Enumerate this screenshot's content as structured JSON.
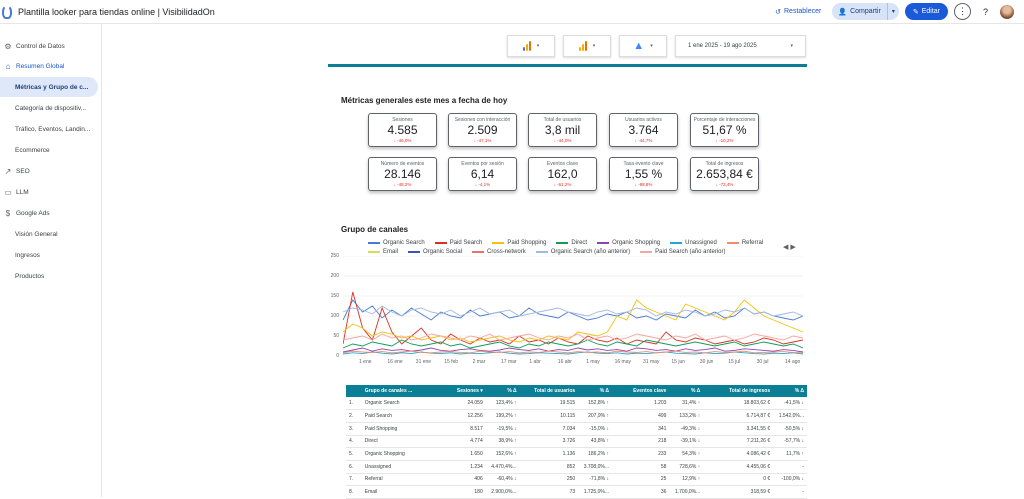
{
  "app": {
    "title": "Plantilla looker para tiendas online | VisibilidadOn",
    "reset_label": "Restablecer",
    "share_label": "Compartir",
    "edit_label": "Editar"
  },
  "sidebar": {
    "items": [
      {
        "label": "Control de Datos",
        "icon": "gear-icon",
        "glyph": "⚙"
      },
      {
        "label": "Resumen Global",
        "icon": "home-icon",
        "glyph": "⌂"
      },
      {
        "label": "Métricas y Grupo de c..."
      },
      {
        "label": "Categoría de dispositiv..."
      },
      {
        "label": "Tráfico, Eventos, Landin..."
      },
      {
        "label": "Ecommerce"
      },
      {
        "label": "SEO",
        "icon": "trending-up-icon",
        "glyph": "↗"
      },
      {
        "label": "LLM",
        "icon": "chat-icon",
        "glyph": "▭"
      },
      {
        "label": "Google Ads",
        "icon": "dollar-icon",
        "glyph": "$"
      },
      {
        "label": "Visión General"
      },
      {
        "label": "Ingresos"
      },
      {
        "label": "Productos"
      }
    ]
  },
  "filters": {
    "date_range": "1 ene 2025 - 19 ago 2025"
  },
  "metrics": {
    "title": "Métricas generales este mes a fecha de hoy",
    "cards": [
      {
        "label": "Sesiones",
        "value": "4.585",
        "delta": "↓ -46,0%"
      },
      {
        "label": "Sesiones con interacción",
        "value": "2.509",
        "delta": "↓ -47,1%"
      },
      {
        "label": "Total de usuarios",
        "value": "3,8 mil",
        "delta": "↓ -44,0%"
      },
      {
        "label": "Usuarios activos",
        "value": "3.764",
        "delta": "↓ -44,7%"
      },
      {
        "label": "Porcentaje de interacciones",
        "value": "51,67 %",
        "delta": "↓ -10,2%"
      },
      {
        "label": "Número de eventos",
        "value": "28.146",
        "delta": "↓ -48,2%"
      },
      {
        "label": "Eventos por sesión",
        "value": "6,14",
        "delta": "↓ -4,1%"
      },
      {
        "label": "Eventos clave",
        "value": "162,0",
        "delta": "↓ -61,2%"
      },
      {
        "label": "Tasa evento clave",
        "value": "1,55 %",
        "delta": "↓ -98,8%"
      },
      {
        "label": "Total de ingresos",
        "value": "2.653,84 €",
        "delta": "↓ -73,4%"
      }
    ]
  },
  "channels": {
    "title": "Grupo de canales",
    "legend": [
      {
        "name": "Organic Search",
        "color": "#4a7bd0"
      },
      {
        "name": "Paid Search",
        "color": "#d93025"
      },
      {
        "name": "Paid Shopping",
        "color": "#f4c20d"
      },
      {
        "name": "Direct",
        "color": "#0f9d58"
      },
      {
        "name": "Organic Shopping",
        "color": "#8e44ad"
      },
      {
        "name": "Unassigned",
        "color": "#26a7c9"
      },
      {
        "name": "Referral",
        "color": "#f08c6c"
      },
      {
        "name": "Email",
        "color": "#d4e157"
      },
      {
        "name": "Organic Social",
        "color": "#3f51b5"
      },
      {
        "name": "Cross-network",
        "color": "#e57373"
      },
      {
        "name": "Organic Search (año anterior)",
        "color": "#9fb8e6"
      },
      {
        "name": "Paid Search (año anterior)",
        "color": "#f2a8a0"
      }
    ]
  },
  "chart_data": {
    "type": "line",
    "y_ticks": [
      "250",
      "200",
      "150",
      "100",
      "50",
      "0"
    ],
    "ylim": [
      0,
      250
    ],
    "x_ticks": [
      "1 ene",
      "16 ene",
      "31 ene",
      "15 feb",
      "2 mar",
      "17 mar",
      "1 abr",
      "16 abr",
      "1 may",
      "16 may",
      "31 may",
      "15 jun",
      "30 jun",
      "15 jul",
      "30 jul",
      "14 ago"
    ],
    "series": [
      {
        "name": "Organic Search",
        "values": [
          90,
          140,
          110,
          125,
          95,
          115,
          100,
          120,
          105,
          90,
          110,
          100,
          95,
          115,
          100,
          105,
          110,
          95,
          100,
          120,
          105,
          100,
          95,
          110,
          100,
          90,
          95,
          105,
          100,
          110,
          95,
          100,
          90,
          105,
          100,
          95,
          115,
          100,
          110,
          95,
          100,
          120,
          105,
          110,
          100,
          95,
          90,
          100
        ]
      },
      {
        "name": "Paid Search",
        "values": [
          30,
          160,
          70,
          40,
          120,
          60,
          30,
          50,
          70,
          40,
          30,
          55,
          40,
          30,
          45,
          35,
          40,
          30,
          50,
          35,
          40,
          30,
          45,
          35,
          30,
          50,
          40,
          35,
          45,
          30,
          40,
          35,
          30,
          60,
          40,
          35,
          45,
          40,
          30,
          35,
          40,
          30,
          35,
          45,
          40,
          30,
          35,
          40
        ]
      },
      {
        "name": "Paid Shopping",
        "values": [
          60,
          80,
          70,
          50,
          60,
          55,
          45,
          50,
          40,
          45,
          50,
          40,
          45,
          35,
          40,
          45,
          50,
          40,
          35,
          45,
          40,
          50,
          45,
          40,
          60,
          55,
          50,
          60,
          100,
          90,
          140,
          120,
          110,
          100,
          90,
          130,
          120,
          110,
          100,
          90,
          110,
          140,
          120,
          100,
          90,
          80,
          70,
          60
        ]
      },
      {
        "name": "Direct",
        "values": [
          20,
          30,
          25,
          35,
          30,
          25,
          40,
          30,
          25,
          30,
          35,
          25,
          30,
          20,
          25,
          30,
          35,
          25,
          20,
          30,
          25,
          35,
          30,
          25,
          30,
          40,
          30,
          25,
          35,
          30,
          25,
          40,
          35,
          30,
          25,
          30,
          35,
          30,
          25,
          30,
          35,
          25,
          30,
          35,
          30,
          25,
          30,
          20
        ]
      },
      {
        "name": "Organic Shopping",
        "values": [
          10,
          15,
          20,
          12,
          18,
          14,
          16,
          12,
          15,
          20,
          14,
          12,
          16,
          18,
          14,
          12,
          15,
          20,
          16,
          14,
          18,
          12,
          16,
          14,
          20,
          15,
          18,
          14,
          16,
          12,
          20,
          18,
          14,
          16,
          12,
          18,
          14,
          16,
          20,
          12,
          14,
          18,
          16,
          14,
          12,
          16,
          14,
          10
        ]
      },
      {
        "name": "Unassigned",
        "values": [
          5,
          8,
          6,
          10,
          7,
          5,
          8,
          6,
          10,
          7,
          6,
          8,
          5,
          7,
          6,
          8,
          10,
          7,
          5,
          6,
          8,
          7,
          6,
          5,
          8,
          10,
          7,
          6,
          8,
          5,
          7,
          6,
          8,
          10,
          7,
          6,
          5,
          8,
          6,
          7,
          10,
          8,
          6,
          5,
          7,
          6,
          8,
          5
        ]
      },
      {
        "name": "Referral",
        "values": [
          8,
          12,
          10,
          9,
          11,
          8,
          10,
          12,
          9,
          8,
          10,
          11,
          9,
          8,
          12,
          10,
          9,
          11,
          8,
          10,
          9,
          12,
          10,
          8,
          11,
          9,
          10,
          8,
          12,
          10,
          9,
          11,
          8,
          10,
          12,
          9,
          10,
          8,
          11,
          9,
          10,
          12,
          8,
          9,
          10,
          11,
          9,
          8
        ]
      },
      {
        "name": "Organic Search (año anterior)",
        "values": [
          110,
          120,
          115,
          105,
          125,
          110,
          100,
          115,
          120,
          110,
          105,
          115,
          100,
          110,
          120,
          105,
          110,
          115,
          100,
          105,
          110,
          115,
          120,
          110,
          105,
          100,
          110,
          115,
          105,
          110,
          120,
          115,
          100,
          110,
          105,
          115,
          110,
          100,
          105,
          115,
          110,
          120,
          105,
          110,
          100,
          105,
          110,
          100
        ]
      },
      {
        "name": "Paid Search (año anterior)",
        "values": [
          40,
          45,
          50,
          40,
          55,
          45,
          50,
          40,
          45,
          55,
          50,
          45,
          40,
          50,
          45,
          55,
          40,
          45,
          50,
          55,
          45,
          40,
          50,
          45,
          55,
          40,
          45,
          50,
          40,
          45,
          55,
          50,
          45,
          40,
          50,
          45,
          55,
          40,
          45,
          50,
          40,
          45,
          55,
          50,
          45,
          40,
          50,
          45
        ]
      }
    ]
  },
  "table": {
    "headers": [
      "Grupo de canales ...",
      "Sesiones ▾",
      "% Δ",
      "Total de usuarios",
      "% Δ",
      "Eventos clave",
      "% Δ",
      "Total de ingresos",
      "% Δ"
    ],
    "rows": [
      {
        "n": "1.",
        "channel": "Organic Search",
        "sessions": "24.059",
        "s_delta": "123,4% ↑",
        "users": "19.515",
        "u_delta": "152,8% ↑",
        "events": "1.203",
        "e_delta": "31,4% ↑",
        "revenue": "18.803,62 €",
        "r_delta": "-41,5% ↓"
      },
      {
        "n": "2.",
        "channel": "Paid Search",
        "sessions": "12.256",
        "s_delta": "199,2% ↑",
        "users": "10.115",
        "u_delta": "207,9% ↑",
        "events": "499",
        "e_delta": "133,2% ↑",
        "revenue": "6.714,87 €",
        "r_delta": "1.542,0%..."
      },
      {
        "n": "3.",
        "channel": "Paid Shopping",
        "sessions": "8.517",
        "s_delta": "-19,5% ↓",
        "users": "7.034",
        "u_delta": "-15,0% ↓",
        "events": "341",
        "e_delta": "-49,3% ↓",
        "revenue": "3.341,55 €",
        "r_delta": "-50,5% ↓"
      },
      {
        "n": "4.",
        "channel": "Direct",
        "sessions": "4.774",
        "s_delta": "38,9% ↑",
        "users": "3.726",
        "u_delta": "43,8% ↑",
        "events": "218",
        "e_delta": "-39,1% ↓",
        "revenue": "7.211,26 €",
        "r_delta": "-57,7% ↓"
      },
      {
        "n": "5.",
        "channel": "Organic Shopping",
        "sessions": "1.650",
        "s_delta": "152,6% ↑",
        "users": "1.136",
        "u_delta": "186,2% ↑",
        "events": "233",
        "e_delta": "54,3% ↑",
        "revenue": "4.086,42 €",
        "r_delta": "11,7% ↑"
      },
      {
        "n": "6.",
        "channel": "Unassigned",
        "sessions": "1.234",
        "s_delta": "4.470,4%...",
        "users": "852",
        "u_delta": "3.708,0%...",
        "events": "58",
        "e_delta": "728,6% ↑",
        "revenue": "4.455,06 €",
        "r_delta": "-"
      },
      {
        "n": "7.",
        "channel": "Referral",
        "sessions": "406",
        "s_delta": "-60,4% ↓",
        "users": "250",
        "u_delta": "-71,8% ↓",
        "events": "25",
        "e_delta": "12,9% ↑",
        "revenue": "0 €",
        "r_delta": "-100,0% ↓"
      },
      {
        "n": "8.",
        "channel": "Email",
        "sessions": "180",
        "s_delta": "2.900,0%...",
        "users": "73",
        "u_delta": "1.725,0%...",
        "events": "36",
        "e_delta": "1.700,0%...",
        "revenue": "318,59 €",
        "r_delta": "-"
      }
    ]
  }
}
